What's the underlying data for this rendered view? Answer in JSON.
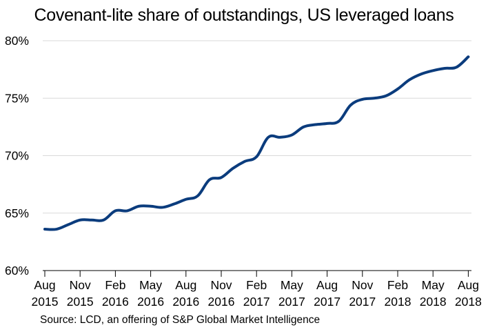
{
  "chart_data": {
    "type": "line",
    "title": "Covenant-lite share of outstandings, US leveraged loans",
    "source": "Source: LCD, an offering of S&P Global Market Intelligence",
    "xlabel": "",
    "ylabel": "",
    "ylim": [
      60,
      80
    ],
    "y_ticks": [
      "60%",
      "65%",
      "70%",
      "75%",
      "80%"
    ],
    "y_tick_values": [
      60,
      65,
      70,
      75,
      80
    ],
    "x_ticks": [
      {
        "month": "Aug",
        "year": "2015"
      },
      {
        "month": "Nov",
        "year": "2015"
      },
      {
        "month": "Feb",
        "year": "2016"
      },
      {
        "month": "May",
        "year": "2016"
      },
      {
        "month": "Aug",
        "year": "2016"
      },
      {
        "month": "Nov",
        "year": "2016"
      },
      {
        "month": "Feb",
        "year": "2017"
      },
      {
        "month": "May",
        "year": "2017"
      },
      {
        "month": "Aug",
        "year": "2017"
      },
      {
        "month": "Nov",
        "year": "2017"
      },
      {
        "month": "Feb",
        "year": "2018"
      },
      {
        "month": "May",
        "year": "2018"
      },
      {
        "month": "Aug",
        "year": "2018"
      }
    ],
    "grid": true,
    "line_color": "#0b3c7d",
    "series": [
      {
        "x": [
          "2015-08",
          "2015-09",
          "2015-10",
          "2015-11",
          "2015-12",
          "2016-01",
          "2016-02",
          "2016-03",
          "2016-04",
          "2016-05",
          "2016-06",
          "2016-07",
          "2016-08",
          "2016-09",
          "2016-10",
          "2016-11",
          "2016-12",
          "2017-01",
          "2017-02",
          "2017-03",
          "2017-04",
          "2017-05",
          "2017-06",
          "2017-07",
          "2017-08",
          "2017-09",
          "2017-10",
          "2017-11",
          "2017-12",
          "2018-01",
          "2018-02",
          "2018-03",
          "2018-04",
          "2018-05",
          "2018-06",
          "2018-07",
          "2018-08"
        ],
        "values": [
          63.6,
          63.6,
          64.0,
          64.4,
          64.4,
          64.4,
          65.2,
          65.2,
          65.6,
          65.6,
          65.5,
          65.8,
          66.2,
          66.5,
          67.9,
          68.1,
          68.9,
          69.5,
          69.9,
          71.6,
          71.6,
          71.8,
          72.5,
          72.7,
          72.8,
          73.0,
          74.4,
          74.9,
          75.0,
          75.2,
          75.8,
          76.6,
          77.1,
          77.4,
          77.6,
          77.7,
          78.6
        ]
      }
    ]
  }
}
